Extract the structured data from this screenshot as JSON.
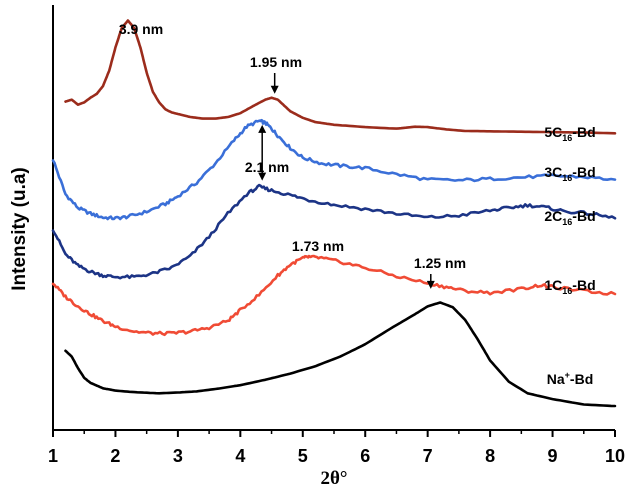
{
  "chart_data": {
    "type": "line",
    "title": "",
    "xlabel": "2θ°",
    "ylabel": "Intensity (u.a)",
    "xlim": [
      1,
      10
    ],
    "xticks": [
      "1",
      "2",
      "3",
      "4",
      "5",
      "6",
      "7",
      "8",
      "9",
      "10"
    ],
    "yticks_shown": false,
    "grid": false,
    "series": [
      {
        "label_main": "5C",
        "label_sub": "16",
        "label_tail": "-Bd",
        "color": "#9b2c1c",
        "x": [
          1.2,
          1.3,
          1.4,
          1.5,
          1.6,
          1.7,
          1.8,
          1.9,
          2.0,
          2.1,
          2.2,
          2.3,
          2.4,
          2.5,
          2.6,
          2.7,
          2.8,
          2.9,
          3.0,
          3.2,
          3.4,
          3.6,
          3.8,
          4.0,
          4.2,
          4.4,
          4.5,
          4.6,
          4.7,
          4.8,
          5.0,
          5.2,
          5.5,
          6.0,
          6.5,
          6.8,
          7.0,
          7.3,
          7.6,
          8.0,
          8.5,
          9.0,
          9.5,
          10.0
        ],
        "y": [
          0.85,
          0.855,
          0.842,
          0.848,
          0.86,
          0.87,
          0.89,
          0.93,
          0.99,
          1.04,
          1.06,
          1.04,
          0.99,
          0.925,
          0.875,
          0.848,
          0.83,
          0.822,
          0.818,
          0.81,
          0.806,
          0.806,
          0.81,
          0.82,
          0.838,
          0.855,
          0.86,
          0.855,
          0.84,
          0.825,
          0.808,
          0.797,
          0.79,
          0.784,
          0.78,
          0.785,
          0.784,
          0.778,
          0.774,
          0.773,
          0.772,
          0.771,
          0.77,
          0.768
        ]
      },
      {
        "label_main": "3C",
        "label_sub": "16",
        "label_tail": "-Bd",
        "color": "#3a6fd8",
        "x": [
          1.0,
          1.2,
          1.4,
          1.6,
          1.8,
          2.0,
          2.2,
          2.5,
          2.8,
          3.0,
          3.3,
          3.6,
          3.9,
          4.1,
          4.3,
          4.4,
          4.5,
          4.6,
          4.8,
          5.0,
          5.3,
          5.6,
          6.0,
          6.5,
          7.0,
          7.5,
          8.0,
          8.5,
          9.0,
          9.5,
          10.0
        ],
        "y": [
          0.7,
          0.61,
          0.575,
          0.56,
          0.55,
          0.548,
          0.552,
          0.565,
          0.585,
          0.605,
          0.64,
          0.69,
          0.75,
          0.785,
          0.8,
          0.795,
          0.78,
          0.762,
          0.73,
          0.705,
          0.69,
          0.684,
          0.678,
          0.662,
          0.648,
          0.646,
          0.65,
          0.654,
          0.658,
          0.655,
          0.648
        ]
      },
      {
        "label_main": "2C",
        "label_sub": "16",
        "label_tail": "-Bd",
        "color": "#1c3486",
        "x": [
          1.0,
          1.2,
          1.4,
          1.6,
          1.8,
          2.0,
          2.3,
          2.6,
          2.9,
          3.2,
          3.5,
          3.8,
          4.1,
          4.3,
          4.5,
          4.8,
          5.1,
          5.5,
          6.0,
          6.5,
          7.0,
          7.5,
          8.0,
          8.3,
          8.6,
          8.9,
          9.2,
          9.6,
          10.0
        ],
        "y": [
          0.52,
          0.455,
          0.425,
          0.41,
          0.4,
          0.396,
          0.396,
          0.405,
          0.42,
          0.45,
          0.5,
          0.56,
          0.61,
          0.63,
          0.62,
          0.608,
          0.595,
          0.583,
          0.572,
          0.56,
          0.55,
          0.555,
          0.568,
          0.575,
          0.582,
          0.576,
          0.566,
          0.56,
          0.548
        ]
      },
      {
        "label_main": "1C",
        "label_sub": "16",
        "label_tail": "-Bd",
        "color": "#f04b35",
        "x": [
          1.0,
          1.2,
          1.4,
          1.6,
          1.8,
          2.0,
          2.3,
          2.6,
          2.9,
          3.2,
          3.5,
          3.8,
          4.0,
          4.3,
          4.6,
          4.8,
          5.0,
          5.1,
          5.3,
          5.6,
          6.0,
          6.5,
          7.0,
          7.3,
          7.6,
          8.0,
          8.5,
          8.8,
          9.0,
          9.5,
          10.0
        ],
        "y": [
          0.38,
          0.345,
          0.32,
          0.3,
          0.282,
          0.268,
          0.255,
          0.25,
          0.25,
          0.255,
          0.265,
          0.283,
          0.31,
          0.35,
          0.4,
          0.428,
          0.445,
          0.448,
          0.445,
          0.435,
          0.42,
          0.398,
          0.38,
          0.37,
          0.36,
          0.355,
          0.365,
          0.375,
          0.37,
          0.36,
          0.352
        ]
      },
      {
        "label_main": "Na",
        "label_sup": "+",
        "label_tail": "-Bd",
        "color": "#000000",
        "x": [
          1.2,
          1.3,
          1.4,
          1.5,
          1.6,
          1.8,
          2.0,
          2.3,
          2.7,
          3.0,
          3.3,
          3.6,
          4.0,
          4.4,
          4.8,
          5.2,
          5.6,
          6.0,
          6.4,
          6.8,
          7.0,
          7.2,
          7.4,
          7.6,
          7.8,
          8.0,
          8.3,
          8.6,
          9.0,
          9.5,
          10.0
        ],
        "y": [
          0.205,
          0.19,
          0.16,
          0.135,
          0.122,
          0.108,
          0.102,
          0.098,
          0.095,
          0.097,
          0.1,
          0.106,
          0.116,
          0.13,
          0.146,
          0.165,
          0.19,
          0.222,
          0.262,
          0.3,
          0.32,
          0.33,
          0.318,
          0.285,
          0.235,
          0.18,
          0.125,
          0.095,
          0.08,
          0.066,
          0.062
        ]
      }
    ],
    "annotations": [
      {
        "text": "3.9 nm",
        "x": 2.25,
        "y": 1.06,
        "arrow": false
      },
      {
        "text": "1.95 nm",
        "x": 4.55,
        "y": 0.86,
        "arrow": true
      },
      {
        "text": "2.1 nm",
        "x": 4.35,
        "y": 0.63,
        "arrow": true,
        "arrow_from_y": 0.8
      },
      {
        "text": "1.73 nm",
        "x": 5.3,
        "y": 0.448,
        "arrow": false
      },
      {
        "text": "1.25 nm",
        "x": 7.05,
        "y": 0.355,
        "arrow": true
      }
    ]
  }
}
